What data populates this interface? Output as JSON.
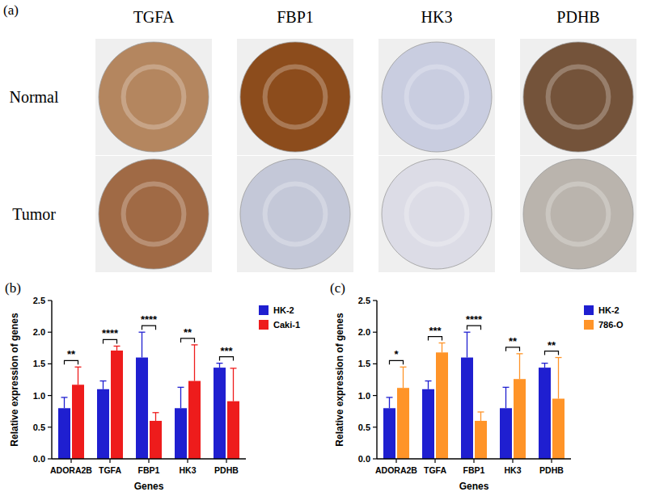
{
  "chart_data": [
    {
      "type": "image_grid",
      "panel": "(a)",
      "columns": [
        "TGFA",
        "FBP1",
        "HK3",
        "PDHB"
      ],
      "rows": [
        "Normal",
        "Tumor"
      ],
      "colors": [
        [
          "#b4865f",
          "#8c4c1c",
          "#c9cde0",
          "#74533a"
        ],
        [
          "#a06a45",
          "#c4c8d8",
          "#dcdce6",
          "#bab4ad"
        ]
      ]
    },
    {
      "type": "bar",
      "panel": "(b)",
      "categories": [
        "ADORA2B",
        "TGFA",
        "FBP1",
        "HK3",
        "PDHB"
      ],
      "series": [
        {
          "name": "HK-2",
          "color": "#1f1fd0",
          "values": [
            0.8,
            1.1,
            1.6,
            0.8,
            1.44
          ],
          "errors": [
            0.17,
            0.13,
            0.4,
            0.33,
            0.07
          ]
        },
        {
          "name": "Caki-1",
          "color": "#ee1c1c",
          "values": [
            1.17,
            1.71,
            0.6,
            1.23,
            0.91
          ],
          "errors": [
            0.28,
            0.07,
            0.13,
            0.57,
            0.52
          ]
        }
      ],
      "significance": [
        "**",
        "****",
        "****",
        "**",
        "***"
      ],
      "x_label": "Genes",
      "y_label": "Relative expression of genes",
      "ylim": [
        0,
        2.5
      ],
      "yticks": [
        {
          "value": 0,
          "label": "0.0"
        },
        0.5,
        {
          "value": 1,
          "label": "1.0"
        },
        1.5,
        {
          "value": 2,
          "label": "2.0"
        },
        2.5
      ],
      "legend": "right",
      "grid": false
    },
    {
      "type": "bar",
      "panel": "(c)",
      "categories": [
        "ADORA2B",
        "TGFA",
        "FBP1",
        "HK3",
        "PDHB"
      ],
      "series": [
        {
          "name": "HK-2",
          "color": "#1f1fd0",
          "values": [
            0.8,
            1.1,
            1.6,
            0.8,
            1.44
          ],
          "errors": [
            0.17,
            0.13,
            0.4,
            0.33,
            0.07
          ]
        },
        {
          "name": "786-O",
          "color": "#ff9428",
          "values": [
            1.12,
            1.68,
            0.6,
            1.26,
            0.95
          ],
          "errors": [
            0.33,
            0.15,
            0.14,
            0.4,
            0.65
          ]
        }
      ],
      "significance": [
        "*",
        "***",
        "****",
        "**",
        "**"
      ],
      "x_label": "Genes",
      "y_label": "Relative expression of genes",
      "ylim": [
        0,
        2.5
      ],
      "yticks": [
        {
          "value": 0,
          "label": "0.0"
        },
        0.5,
        {
          "value": 1,
          "label": "1.0"
        },
        1.5,
        {
          "value": 2,
          "label": "2.0"
        },
        2.5
      ],
      "legend": "right",
      "grid": false
    }
  ]
}
